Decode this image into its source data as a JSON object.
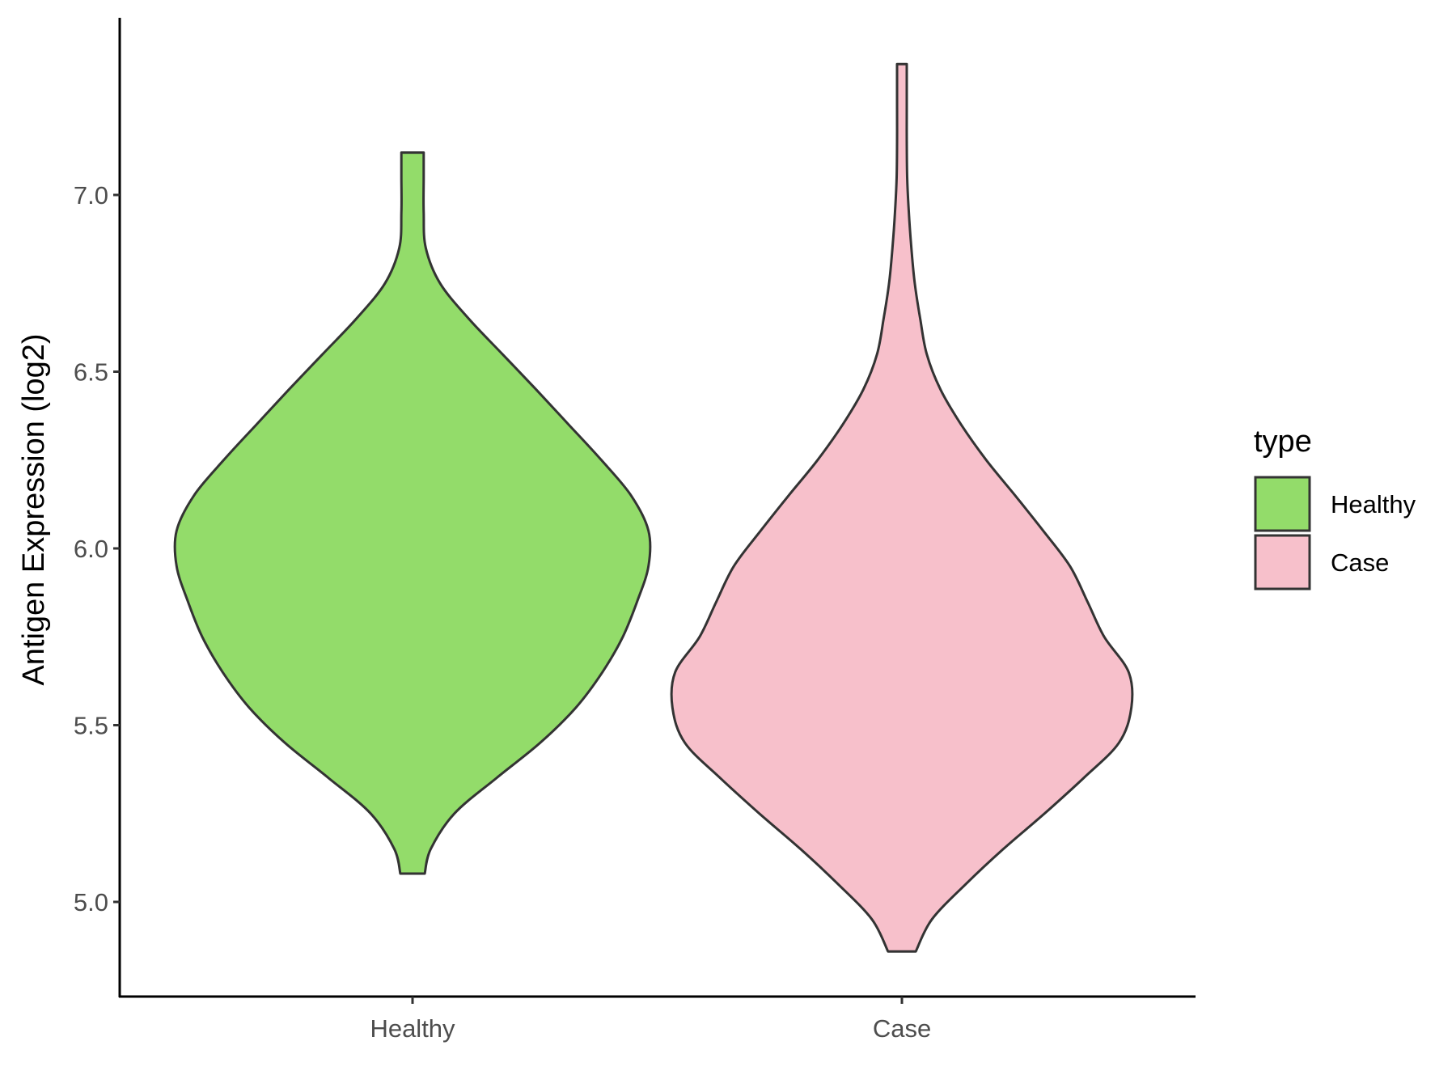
{
  "chart_data": {
    "type": "violin",
    "xlabel": "",
    "ylabel": "Antigen Expression (log2)",
    "ylim": [
      4.78,
      7.5
    ],
    "y_ticks": [
      "5.0",
      "5.5",
      "6.0",
      "6.5",
      "7.0"
    ],
    "categories": [
      "Healthy",
      "Case"
    ],
    "grid": false,
    "legend": {
      "title": "type",
      "position": "right",
      "entries": [
        {
          "label": "Healthy",
          "color": "#93dc6a"
        },
        {
          "label": "Case",
          "color": "#f7c0cb"
        }
      ]
    },
    "series": [
      {
        "name": "Healthy",
        "color": "#93dc6a",
        "y_min": 5.08,
        "y_max": 7.12,
        "density_profile": [
          [
            5.08,
            0.058
          ],
          [
            5.15,
            0.087
          ],
          [
            5.25,
            0.199
          ],
          [
            5.35,
            0.398
          ],
          [
            5.45,
            0.607
          ],
          [
            5.55,
            0.777
          ],
          [
            5.65,
            0.903
          ],
          [
            5.75,
            1.0
          ],
          [
            5.85,
            1.068
          ],
          [
            5.95,
            1.122
          ],
          [
            6.05,
            1.122
          ],
          [
            6.15,
            1.039
          ],
          [
            6.25,
            0.898
          ],
          [
            6.35,
            0.743
          ],
          [
            6.45,
            0.587
          ],
          [
            6.55,
            0.427
          ],
          [
            6.65,
            0.267
          ],
          [
            6.75,
            0.131
          ],
          [
            6.85,
            0.063
          ],
          [
            6.95,
            0.053
          ],
          [
            7.05,
            0.053
          ],
          [
            7.12,
            0.053
          ]
        ]
      },
      {
        "name": "Case",
        "color": "#f7c0cb",
        "y_min": 4.86,
        "y_max": 7.37,
        "density_profile": [
          [
            4.86,
            0.066
          ],
          [
            4.95,
            0.142
          ],
          [
            5.05,
            0.303
          ],
          [
            5.15,
            0.483
          ],
          [
            5.25,
            0.678
          ],
          [
            5.35,
            0.863
          ],
          [
            5.45,
            1.032
          ],
          [
            5.55,
            1.091
          ],
          [
            5.65,
            1.078
          ],
          [
            5.75,
            0.962
          ],
          [
            5.85,
            0.882
          ],
          [
            5.95,
            0.799
          ],
          [
            6.05,
            0.672
          ],
          [
            6.15,
            0.538
          ],
          [
            6.25,
            0.401
          ],
          [
            6.35,
            0.282
          ],
          [
            6.45,
            0.183
          ],
          [
            6.55,
            0.118
          ],
          [
            6.65,
            0.087
          ],
          [
            6.75,
            0.061
          ],
          [
            6.85,
            0.045
          ],
          [
            6.95,
            0.033
          ],
          [
            7.05,
            0.025
          ],
          [
            7.15,
            0.023
          ],
          [
            7.25,
            0.023
          ],
          [
            7.37,
            0.023
          ]
        ]
      }
    ]
  }
}
